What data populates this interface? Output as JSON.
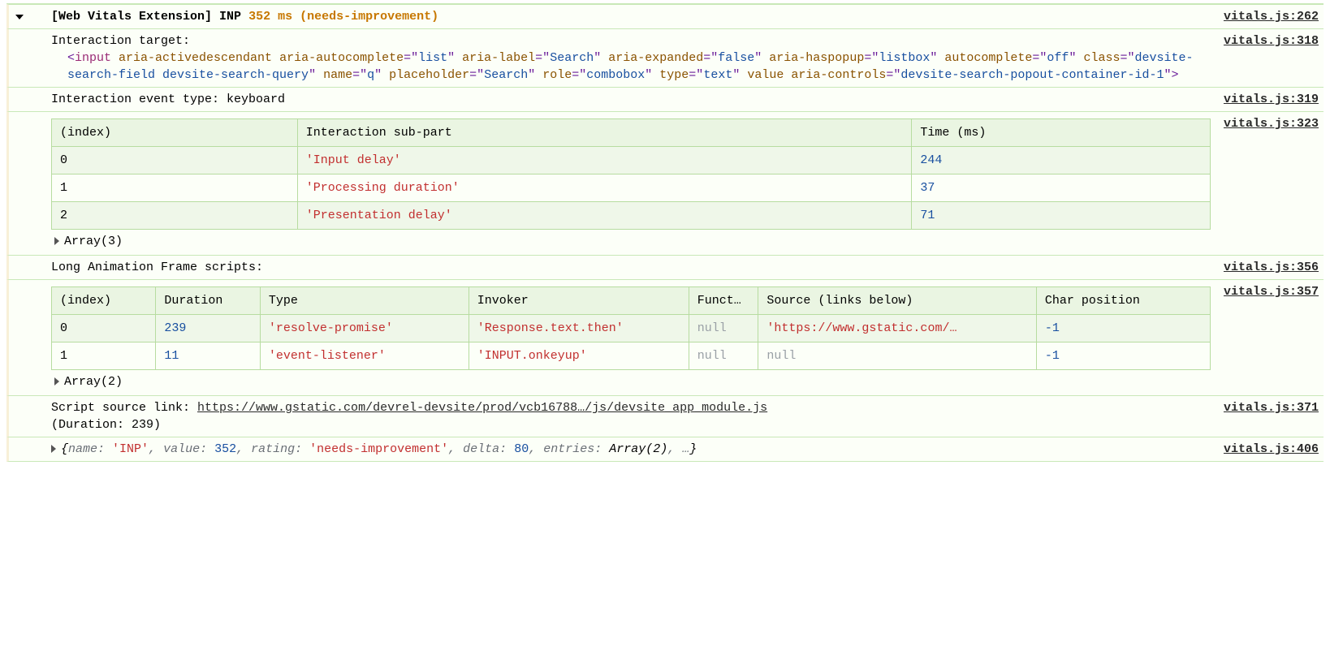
{
  "header": {
    "prefix": "[Web Vitals Extension] INP",
    "metric": "352 ms (needs-improvement)",
    "src": "vitals.js:262"
  },
  "rows": {
    "target": {
      "label": "Interaction target:",
      "src": "vitals.js:318",
      "html_parts": [
        {
          "t": "punct",
          "v": "<"
        },
        {
          "t": "tag",
          "v": "input "
        },
        {
          "t": "attr",
          "v": "aria-activedescendant "
        },
        {
          "t": "attr",
          "v": "aria-autocomplete"
        },
        {
          "t": "punct",
          "v": "=\""
        },
        {
          "t": "strv",
          "v": "list"
        },
        {
          "t": "punct",
          "v": "\" "
        },
        {
          "t": "attr",
          "v": "aria-label"
        },
        {
          "t": "punct",
          "v": "=\""
        },
        {
          "t": "strv",
          "v": "Search"
        },
        {
          "t": "punct",
          "v": "\" "
        },
        {
          "t": "attr",
          "v": "aria-expanded"
        },
        {
          "t": "punct",
          "v": "=\""
        },
        {
          "t": "strv",
          "v": "false"
        },
        {
          "t": "punct",
          "v": "\" "
        },
        {
          "t": "attr",
          "v": "aria-haspopup"
        },
        {
          "t": "punct",
          "v": "=\""
        },
        {
          "t": "strv",
          "v": "listbox"
        },
        {
          "t": "punct",
          "v": "\" "
        },
        {
          "t": "attr",
          "v": "autocomplete"
        },
        {
          "t": "punct",
          "v": "=\""
        },
        {
          "t": "strv",
          "v": "off"
        },
        {
          "t": "punct",
          "v": "\" "
        },
        {
          "t": "attr",
          "v": "class"
        },
        {
          "t": "punct",
          "v": "=\""
        },
        {
          "t": "strv",
          "v": "devsite-search-field devsite-search-query"
        },
        {
          "t": "punct",
          "v": "\" "
        },
        {
          "t": "attr",
          "v": "name"
        },
        {
          "t": "punct",
          "v": "=\""
        },
        {
          "t": "strv",
          "v": "q"
        },
        {
          "t": "punct",
          "v": "\" "
        },
        {
          "t": "attr",
          "v": "placeholder"
        },
        {
          "t": "punct",
          "v": "=\""
        },
        {
          "t": "strv",
          "v": "Search"
        },
        {
          "t": "punct",
          "v": "\" "
        },
        {
          "t": "attr",
          "v": "role"
        },
        {
          "t": "punct",
          "v": "=\""
        },
        {
          "t": "strv",
          "v": "combobox"
        },
        {
          "t": "punct",
          "v": "\" "
        },
        {
          "t": "attr",
          "v": "type"
        },
        {
          "t": "punct",
          "v": "=\""
        },
        {
          "t": "strv",
          "v": "text"
        },
        {
          "t": "punct",
          "v": "\" "
        },
        {
          "t": "attr",
          "v": "value "
        },
        {
          "t": "attr",
          "v": "aria-controls"
        },
        {
          "t": "punct",
          "v": "=\""
        },
        {
          "t": "strv",
          "v": "devsite-search-popout-container-id-1"
        },
        {
          "t": "punct",
          "v": "\""
        },
        {
          "t": "punct",
          "v": ">"
        }
      ]
    },
    "event_type": {
      "text": "Interaction event type: keyboard",
      "src": "vitals.js:319"
    },
    "table1_src": "vitals.js:323",
    "laf_label": {
      "text": "Long Animation Frame scripts:",
      "src": "vitals.js:356"
    },
    "table2_src": "vitals.js:357",
    "script_link": {
      "prefix": "Script source link: ",
      "url": "https://www.gstatic.com/devrel-devsite/prod/vcb16788…/js/devsite_app_module.js",
      "duration_label": "(Duration: 239)",
      "src": "vitals.js:371"
    },
    "obj_summary": {
      "parts": [
        {
          "t": "plain",
          "v": "{"
        },
        {
          "t": "key",
          "v": "name: "
        },
        {
          "t": "keystr",
          "v": "'INP'"
        },
        {
          "t": "key",
          "v": ", "
        },
        {
          "t": "key",
          "v": "value: "
        },
        {
          "t": "num",
          "v": "352"
        },
        {
          "t": "key",
          "v": ", "
        },
        {
          "t": "key",
          "v": "rating: "
        },
        {
          "t": "keystr",
          "v": "'needs-improvement'"
        },
        {
          "t": "key",
          "v": ", "
        },
        {
          "t": "key",
          "v": "delta: "
        },
        {
          "t": "num",
          "v": "80"
        },
        {
          "t": "key",
          "v": ", "
        },
        {
          "t": "key",
          "v": "entries: "
        },
        {
          "t": "plainit",
          "v": "Array(2)"
        },
        {
          "t": "key",
          "v": ", …"
        },
        {
          "t": "plain",
          "v": "}"
        }
      ],
      "src": "vitals.js:406"
    }
  },
  "table1": {
    "columns": [
      "(index)",
      "Interaction sub-part",
      "Time (ms)"
    ],
    "rows": [
      [
        {
          "v": "0",
          "c": "plain"
        },
        {
          "v": "'Input delay'",
          "c": "keystr"
        },
        {
          "v": "244",
          "c": "num"
        }
      ],
      [
        {
          "v": "1",
          "c": "plain"
        },
        {
          "v": "'Processing duration'",
          "c": "keystr"
        },
        {
          "v": "37",
          "c": "num"
        }
      ],
      [
        {
          "v": "2",
          "c": "plain"
        },
        {
          "v": "'Presentation delay'",
          "c": "keystr"
        },
        {
          "v": "71",
          "c": "num"
        }
      ]
    ],
    "summary": "Array(3)"
  },
  "table2": {
    "columns": [
      "(index)",
      "Duration",
      "Type",
      "Invoker",
      "Funct…",
      "Source (links below)",
      "Char position"
    ],
    "rows": [
      [
        {
          "v": "0",
          "c": "plain"
        },
        {
          "v": "239",
          "c": "num"
        },
        {
          "v": "'resolve-promise'",
          "c": "keystr"
        },
        {
          "v": "'Response.text.then'",
          "c": "keystr"
        },
        {
          "v": "null",
          "c": "null"
        },
        {
          "v": "'https://www.gstatic.com/…",
          "c": "keystr"
        },
        {
          "v": "-1",
          "c": "num"
        }
      ],
      [
        {
          "v": "1",
          "c": "plain"
        },
        {
          "v": "11",
          "c": "num"
        },
        {
          "v": "'event-listener'",
          "c": "keystr"
        },
        {
          "v": "'INPUT.onkeyup'",
          "c": "keystr"
        },
        {
          "v": "null",
          "c": "null"
        },
        {
          "v": "null",
          "c": "null"
        },
        {
          "v": "-1",
          "c": "num"
        }
      ]
    ],
    "summary": "Array(2)"
  }
}
